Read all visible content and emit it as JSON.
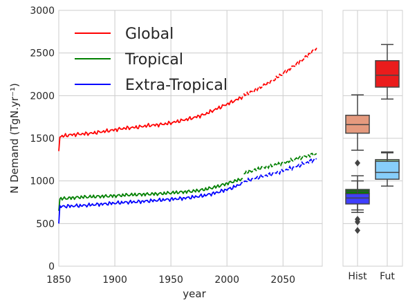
{
  "chart_data": [
    {
      "type": "line",
      "xlabel": "year",
      "ylabel": "N Demand (TgN.yr⁻¹)",
      "xlim": [
        1850,
        2085
      ],
      "ylim": [
        0,
        3000
      ],
      "xticks": [
        1850,
        1900,
        1950,
        2000,
        2050
      ],
      "yticks": [
        0,
        500,
        1000,
        1500,
        2000,
        2500,
        3000
      ],
      "grid": true,
      "legend_position": "upper-left",
      "series": [
        {
          "name": "Global",
          "color": "#ff0000",
          "historical": {
            "x": [
              1850,
              1851,
              1860,
              1870,
              1880,
              1890,
              1900,
              1910,
              1920,
              1930,
              1940,
              1950,
              1960,
              1970,
              1980,
              1990,
              2000,
              2005,
              2010,
              2014
            ],
            "y": [
              1350,
              1520,
              1540,
              1550,
              1560,
              1580,
              1600,
              1620,
              1630,
              1650,
              1660,
              1680,
              1710,
              1740,
              1780,
              1840,
              1900,
              1930,
              1960,
              1990
            ]
          },
          "future": {
            "x": [
              2015,
              2020,
              2030,
              2040,
              2050,
              2060,
              2070,
              2080
            ],
            "y": [
              2010,
              2030,
              2100,
              2170,
              2260,
              2350,
              2450,
              2560
            ]
          }
        },
        {
          "name": "Tropical",
          "color": "#008000",
          "historical": {
            "x": [
              1850,
              1851,
              1860,
              1870,
              1880,
              1890,
              1900,
              1910,
              1920,
              1930,
              1940,
              1950,
              1960,
              1970,
              1980,
              1990,
              2000,
              2005,
              2010,
              2014
            ],
            "y": [
              650,
              790,
              800,
              810,
              815,
              820,
              825,
              835,
              840,
              845,
              850,
              860,
              870,
              880,
              900,
              930,
              970,
              990,
              1010,
              1030
            ]
          },
          "future": {
            "x": [
              2015,
              2020,
              2030,
              2040,
              2050,
              2060,
              2070,
              2080
            ],
            "y": [
              1090,
              1110,
              1150,
              1180,
              1210,
              1250,
              1290,
              1320
            ]
          }
        },
        {
          "name": "Extra-Tropical",
          "color": "#0000ff",
          "historical": {
            "x": [
              1850,
              1851,
              1860,
              1870,
              1880,
              1890,
              1900,
              1910,
              1920,
              1930,
              1940,
              1950,
              1960,
              1970,
              1980,
              1990,
              2000,
              2005,
              2010,
              2014
            ],
            "y": [
              500,
              700,
              705,
              710,
              720,
              730,
              740,
              750,
              755,
              765,
              775,
              785,
              795,
              810,
              830,
              860,
              900,
              920,
              950,
              980
            ]
          },
          "future": {
            "x": [
              2015,
              2020,
              2030,
              2040,
              2050,
              2060,
              2070,
              2080
            ],
            "y": [
              990,
              1010,
              1050,
              1080,
              1120,
              1160,
              1210,
              1260
            ]
          }
        }
      ]
    },
    {
      "type": "box",
      "categories": [
        "Hist",
        "Fut"
      ],
      "ylim": [
        0,
        3000
      ],
      "grid": true,
      "boxes": [
        {
          "category": "Hist",
          "color": "#e59a7e",
          "whisker_low": 1360,
          "q1": 1560,
          "median": 1660,
          "q3": 1770,
          "whisker_high": 2010,
          "outliers": [
            1210
          ]
        },
        {
          "category": "Hist",
          "color": "#008000",
          "whisker_low": 660,
          "q1": 850,
          "median": 880,
          "q3": 900,
          "whisker_high": 1000,
          "outliers": []
        },
        {
          "category": "Hist",
          "color": "#3f3fff",
          "whisker_low": 630,
          "q1": 730,
          "median": 800,
          "q3": 850,
          "whisker_high": 1060,
          "outliers": [
            550,
            520,
            420
          ]
        },
        {
          "category": "Fut",
          "color": "#ea1c1c",
          "whisker_low": 1960,
          "q1": 2100,
          "median": 2240,
          "q3": 2410,
          "whisker_high": 2600,
          "outliers": []
        },
        {
          "category": "Fut",
          "color": "#98d898",
          "whisker_low": 1060,
          "q1": 1100,
          "median": 1190,
          "q3": 1250,
          "whisker_high": 1340,
          "outliers": []
        },
        {
          "category": "Fut",
          "color": "#87cefa",
          "whisker_low": 940,
          "q1": 1020,
          "median": 1100,
          "q3": 1230,
          "whisker_high": 1330,
          "outliers": []
        }
      ]
    }
  ]
}
